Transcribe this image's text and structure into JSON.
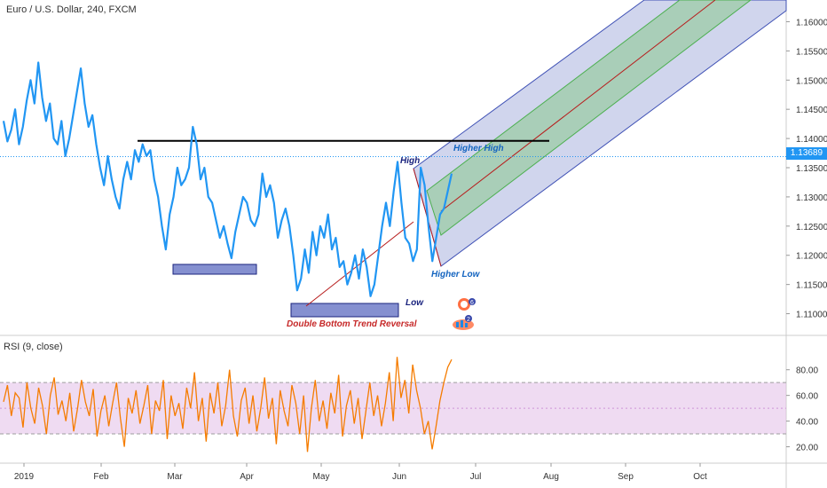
{
  "header": {
    "title": "Euro / U.S. Dollar, 240, FXCM"
  },
  "rsi": {
    "title": "RSI (9, close)"
  },
  "chart_data": [
    {
      "type": "line",
      "title": "Euro / U.S. Dollar, 240, FXCM",
      "ylim": [
        1.1075,
        1.1625
      ],
      "y_ticks": [
        "1.16000",
        "1.15500",
        "1.15000",
        "1.14500",
        "1.14000",
        "1.13500",
        "1.13000",
        "1.12500",
        "1.12000",
        "1.11500",
        "1.11000"
      ],
      "x_ticks": [
        "2019",
        "Feb",
        "Mar",
        "Apr",
        "May",
        "Jun",
        "Jul",
        "Aug",
        "Sep",
        "Oct"
      ],
      "last_price": "1.13689",
      "series": [
        {
          "values": [
            1.143,
            1.1395,
            1.1415,
            1.145,
            1.139,
            1.142,
            1.1465,
            1.15,
            1.146,
            1.153,
            1.147,
            1.143,
            1.146,
            1.14,
            1.139,
            1.143,
            1.137,
            1.14,
            1.144,
            1.148,
            1.152,
            1.146,
            1.142,
            1.144,
            1.139,
            1.135,
            1.132,
            1.137,
            1.133,
            1.13,
            1.128,
            1.133,
            1.136,
            1.133,
            1.138,
            1.136,
            1.139,
            1.137,
            1.138,
            1.133,
            1.13,
            1.125,
            1.121,
            1.127,
            1.13,
            1.135,
            1.132,
            1.133,
            1.135,
            1.142,
            1.139,
            1.133,
            1.135,
            1.13,
            1.129,
            1.126,
            1.123,
            1.125,
            1.122,
            1.1195,
            1.124,
            1.127,
            1.13,
            1.129,
            1.126,
            1.125,
            1.127,
            1.134,
            1.13,
            1.132,
            1.129,
            1.123,
            1.126,
            1.128,
            1.125,
            1.12,
            1.114,
            1.116,
            1.121,
            1.117,
            1.124,
            1.12,
            1.125,
            1.123,
            1.127,
            1.121,
            1.123,
            1.118,
            1.119,
            1.115,
            1.117,
            1.12,
            1.116,
            1.121,
            1.118,
            1.113,
            1.115,
            1.12,
            1.125,
            1.129,
            1.125,
            1.131,
            1.136,
            1.129,
            1.123,
            1.122,
            1.119,
            1.121,
            1.135,
            1.132,
            1.125,
            1.119,
            1.123,
            1.127,
            1.128,
            1.131,
            1.134
          ],
          "last": 1.13689
        }
      ],
      "annotations": [
        "High",
        "Higher High",
        "Low",
        "Higher Low",
        "Double Bottom Trend Reversal"
      ],
      "resistance_level": 1.1396,
      "colors": {
        "price_line": "#2196f3",
        "resistance": "#000000",
        "trend": "#b71c1c",
        "channel_outer": "#3f51b5",
        "channel_inner": "#4caf50",
        "zone": "#5c6bc0"
      }
    },
    {
      "type": "line",
      "title": "RSI (9, close)",
      "ylim": [
        10,
        95
      ],
      "y_ticks": [
        "80.00",
        "60.00",
        "40.00",
        "20.00"
      ],
      "band": [
        30,
        70
      ],
      "series": [
        {
          "values": [
            55,
            68,
            44,
            62,
            58,
            35,
            70,
            50,
            38,
            66,
            52,
            30,
            60,
            74,
            45,
            56,
            40,
            62,
            32,
            50,
            72,
            55,
            44,
            65,
            28,
            48,
            60,
            36,
            54,
            70,
            42,
            20,
            58,
            46,
            64,
            38,
            52,
            68,
            30,
            56,
            48,
            72,
            26,
            60,
            44,
            54,
            34,
            66,
            50,
            78,
            40,
            58,
            24,
            62,
            46,
            70,
            36,
            52,
            80,
            44,
            28,
            56,
            66,
            38,
            60,
            32,
            50,
            74,
            42,
            58,
            22,
            64,
            48,
            36,
            68,
            54,
            30,
            60,
            16,
            50,
            72,
            40,
            56,
            34,
            62,
            46,
            76,
            28,
            52,
            64,
            38,
            58,
            26,
            48,
            70,
            44,
            60,
            36,
            54,
            78,
            40,
            90,
            58,
            72,
            46,
            84,
            64,
            50,
            30,
            40,
            18,
            36,
            56,
            70,
            82,
            88
          ]
        }
      ],
      "colors": {
        "line": "#f57c00",
        "band_fill": "#e1bee7"
      }
    }
  ]
}
